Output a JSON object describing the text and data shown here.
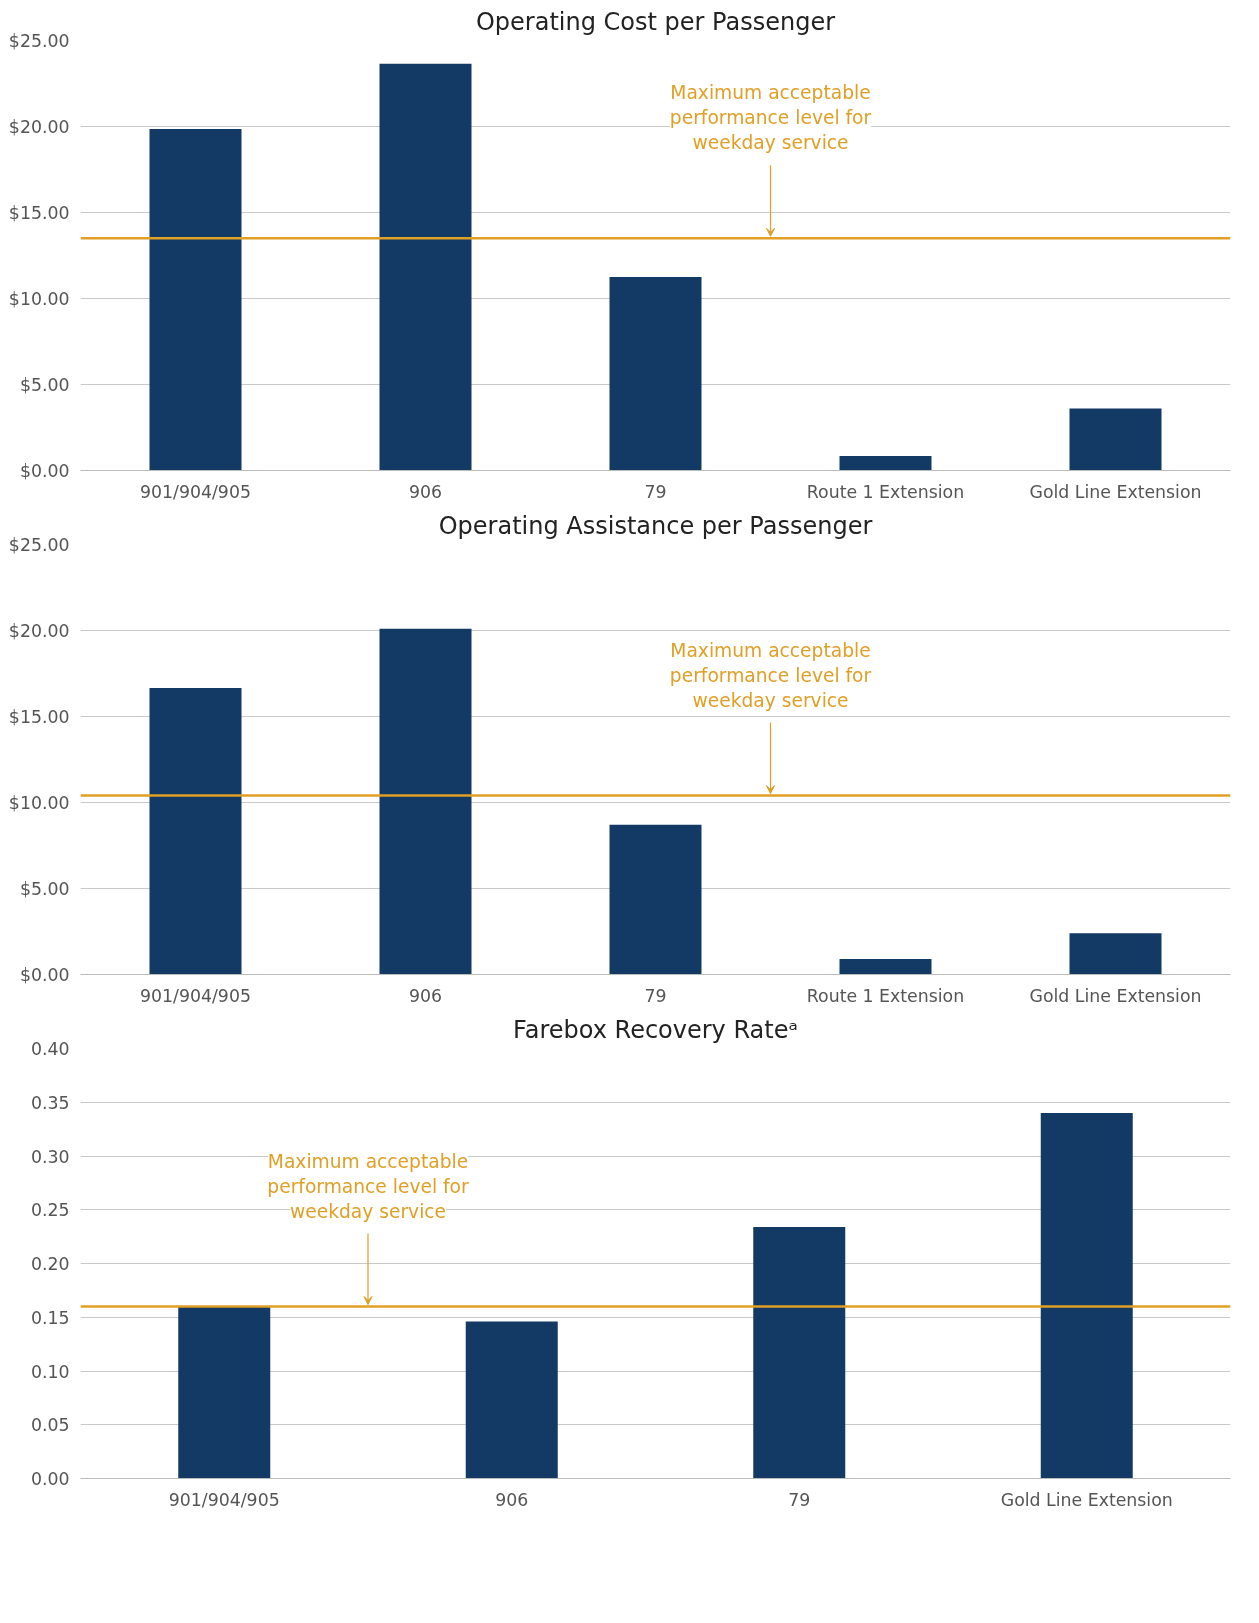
{
  "chart_data": [
    {
      "type": "bar",
      "title": "Operating Cost per Passenger",
      "categories": [
        "901/904/905",
        "906",
        "79",
        "Route 1 Extension",
        "Gold Line Extension"
      ],
      "values": [
        19.85,
        23.65,
        11.25,
        0.85,
        3.6
      ],
      "color": "#133a65",
      "ylim": [
        0,
        25
      ],
      "yticks": [
        {
          "value": 0,
          "label": "$0.00"
        },
        {
          "value": 5,
          "label": "$5.00"
        },
        {
          "value": 10,
          "label": "$10.00"
        },
        {
          "value": 15,
          "label": "$15.00"
        },
        {
          "value": 20,
          "label": "$20.00"
        },
        {
          "value": 25,
          "label": "$25.00"
        }
      ],
      "grid": "y",
      "ref_lines": [
        {
          "axis": "y",
          "value": 13.5,
          "label": "Maximum acceptable performance level for weekday service",
          "color": "#e09f25"
        }
      ]
    },
    {
      "type": "bar",
      "title": "Operating Assistance per Passenger",
      "categories": [
        "901/904/905",
        "906",
        "79",
        "Route 1 Extension",
        "Gold Line Extension"
      ],
      "values": [
        16.65,
        20.1,
        8.7,
        0.9,
        2.4
      ],
      "color": "#133a65",
      "ylim": [
        0,
        25
      ],
      "yticks": [
        {
          "value": 0,
          "label": "$0.00"
        },
        {
          "value": 5,
          "label": "$5.00"
        },
        {
          "value": 10,
          "label": "$10.00"
        },
        {
          "value": 15,
          "label": "$15.00"
        },
        {
          "value": 20,
          "label": "$20.00"
        },
        {
          "value": 25,
          "label": "$25.00"
        }
      ],
      "grid": "y",
      "ref_lines": [
        {
          "axis": "y",
          "value": 10.4,
          "label": "Maximum acceptable performance level for weekday service",
          "color": "#e09f25"
        }
      ]
    },
    {
      "type": "bar",
      "title": "Farebox Recovery Rateᵃ",
      "categories": [
        "901/904/905",
        "906",
        "79",
        "Gold Line Extension"
      ],
      "values": [
        0.16,
        0.146,
        0.234,
        0.34
      ],
      "color": "#133a65",
      "ylim": [
        0,
        0.4
      ],
      "yticks": [
        {
          "value": 0,
          "label": "0.00"
        },
        {
          "value": 0.05,
          "label": "0.05"
        },
        {
          "value": 0.1,
          "label": "0.10"
        },
        {
          "value": 0.15,
          "label": "0.15"
        },
        {
          "value": 0.2,
          "label": "0.20"
        },
        {
          "value": 0.25,
          "label": "0.25"
        },
        {
          "value": 0.3,
          "label": "0.30"
        },
        {
          "value": 0.35,
          "label": "0.35"
        },
        {
          "value": 0.4,
          "label": "0.40"
        }
      ],
      "grid": "y",
      "ref_lines": [
        {
          "axis": "y",
          "value": 0.16,
          "label": "Maximum acceptable performance level for weekday service",
          "color": "#e09f25"
        }
      ]
    }
  ]
}
